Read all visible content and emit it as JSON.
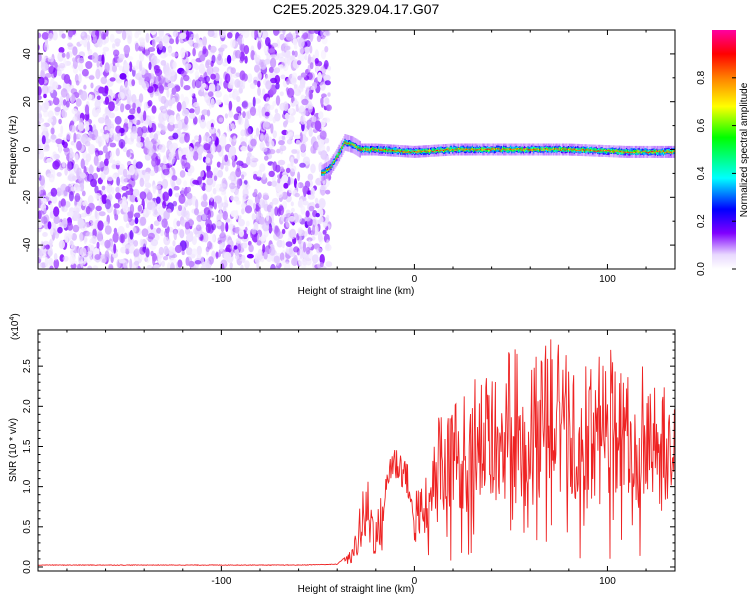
{
  "figure": {
    "title": "C2E5.2025.329.04.17.G07"
  },
  "chart_data": [
    {
      "type": "heatmap",
      "xlabel": "Height of straight line (km)",
      "ylabel": "Frequency (Hz)",
      "xlim": [
        -195,
        135
      ],
      "ylim": [
        -50,
        50
      ],
      "xticks": [
        -100,
        0,
        100
      ],
      "xtick_labels": [
        "-100",
        "0",
        "100"
      ],
      "yticks": [
        -40,
        -20,
        0,
        20,
        40
      ],
      "ytick_labels": [
        "-40",
        "-20",
        "0",
        "20",
        "40"
      ],
      "colorbar": {
        "label": "Normalized spectral amplitude",
        "range": [
          0,
          1
        ],
        "ticks": [
          0.0,
          0.2,
          0.4,
          0.6,
          0.8
        ],
        "tick_labels": [
          "0.0",
          "0.2",
          "0.4",
          "0.6",
          "0.8"
        ],
        "colormap": [
          "#ffffff",
          "#e8d8ff",
          "#8000ff",
          "#0000ff",
          "#00ffff",
          "#00ff00",
          "#ffff00",
          "#ff8000",
          "#ff0000",
          "#ff00a0"
        ]
      },
      "noise_region": {
        "x_range": [
          -195,
          -44
        ],
        "y_range": [
          -50,
          50
        ],
        "typical_amplitude": 0.05
      },
      "signal_trace": [
        {
          "x": -48,
          "y": -10
        },
        {
          "x": -44,
          "y": -8
        },
        {
          "x": -40,
          "y": -3
        },
        {
          "x": -36,
          "y": 3
        },
        {
          "x": -32,
          "y": 2
        },
        {
          "x": -28,
          "y": 0
        },
        {
          "x": -20,
          "y": 0
        },
        {
          "x": 0,
          "y": -1
        },
        {
          "x": 20,
          "y": 0
        },
        {
          "x": 50,
          "y": 0
        },
        {
          "x": 80,
          "y": 0
        },
        {
          "x": 110,
          "y": -1
        },
        {
          "x": 135,
          "y": -1
        }
      ],
      "grid": false,
      "legend": "none"
    },
    {
      "type": "line",
      "xlabel": "Height of straight line (km)",
      "ylabel": "SNR (10 * v/v)",
      "y_multiplier_label": "(x10",
      "y_multiplier_exponent": "4",
      "y_multiplier_close": ")",
      "xlim": [
        -195,
        135
      ],
      "ylim": [
        -0.05,
        2.95
      ],
      "xticks": [
        -100,
        0,
        100
      ],
      "xtick_labels": [
        "-100",
        "0",
        "100"
      ],
      "yticks": [
        0.0,
        0.5,
        1.0,
        1.5,
        2.0,
        2.5
      ],
      "ytick_labels": [
        "0.0",
        "0.5",
        "1.0",
        "1.5",
        "2.0",
        "2.5"
      ],
      "line_color": "#ee2222",
      "series": [
        {
          "x": [
            -195,
            -150,
            -100,
            -60,
            -40,
            -32,
            -28,
            -24,
            -20,
            -16,
            -12,
            -8,
            -4,
            0,
            5,
            10,
            20,
            30,
            40,
            50,
            60,
            70,
            80,
            90,
            100,
            110,
            120,
            130,
            135
          ],
          "y": [
            0.02,
            0.02,
            0.02,
            0.02,
            0.03,
            0.2,
            0.75,
            1.0,
            0.55,
            0.9,
            1.5,
            1.45,
            1.3,
            0.6,
            0.75,
            1.2,
            1.3,
            1.5,
            1.6,
            1.8,
            1.6,
            1.9,
            1.7,
            1.6,
            1.8,
            1.7,
            1.6,
            1.5,
            1.5
          ]
        }
      ],
      "grid": false,
      "legend": "none"
    }
  ]
}
